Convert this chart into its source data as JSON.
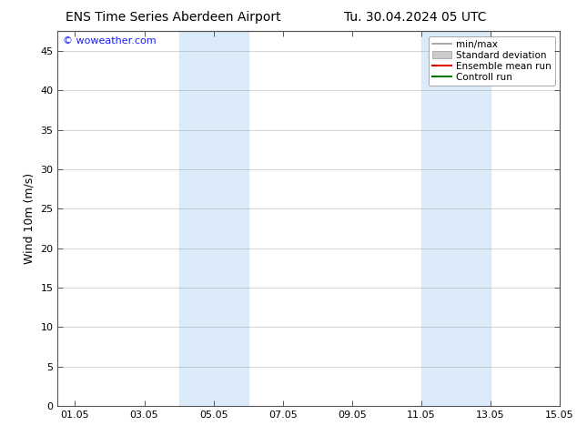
{
  "title_left": "ENS Time Series Aberdeen Airport",
  "title_right": "Tu. 30.04.2024 05 UTC",
  "ylabel": "Wind 10m (m/s)",
  "ylim": [
    0,
    47.5
  ],
  "yticks": [
    0,
    5,
    10,
    15,
    20,
    25,
    30,
    35,
    40,
    45
  ],
  "xlim_start": 0,
  "xlim_end": 14.5,
  "xtick_labels": [
    "01.05",
    "03.05",
    "05.05",
    "07.05",
    "09.05",
    "11.05",
    "13.05",
    "15.05"
  ],
  "xtick_positions": [
    0.5,
    2.5,
    4.5,
    6.5,
    8.5,
    10.5,
    12.5,
    14.5
  ],
  "shaded_bands": [
    {
      "xmin": 3.5,
      "xmax": 5.5,
      "color": "#daeaf8"
    },
    {
      "xmin": 10.5,
      "xmax": 12.5,
      "color": "#daeaf8"
    }
  ],
  "watermark": "© woweather.com",
  "watermark_color": "#1a1aff",
  "legend_entries": [
    {
      "label": "min/max",
      "type": "line",
      "color": "#999999",
      "lw": 1.2
    },
    {
      "label": "Standard deviation",
      "type": "box",
      "color": "#cccccc"
    },
    {
      "label": "Ensemble mean run",
      "type": "line",
      "color": "#dd0000",
      "lw": 1.5
    },
    {
      "label": "Controll run",
      "type": "line",
      "color": "#007700",
      "lw": 1.5
    }
  ],
  "background_color": "#ffffff",
  "plot_bg_color": "#ffffff",
  "grid_color": "#aaaaaa",
  "title_fontsize": 10,
  "ylabel_fontsize": 9,
  "tick_fontsize": 8,
  "legend_fontsize": 7.5,
  "watermark_fontsize": 8
}
